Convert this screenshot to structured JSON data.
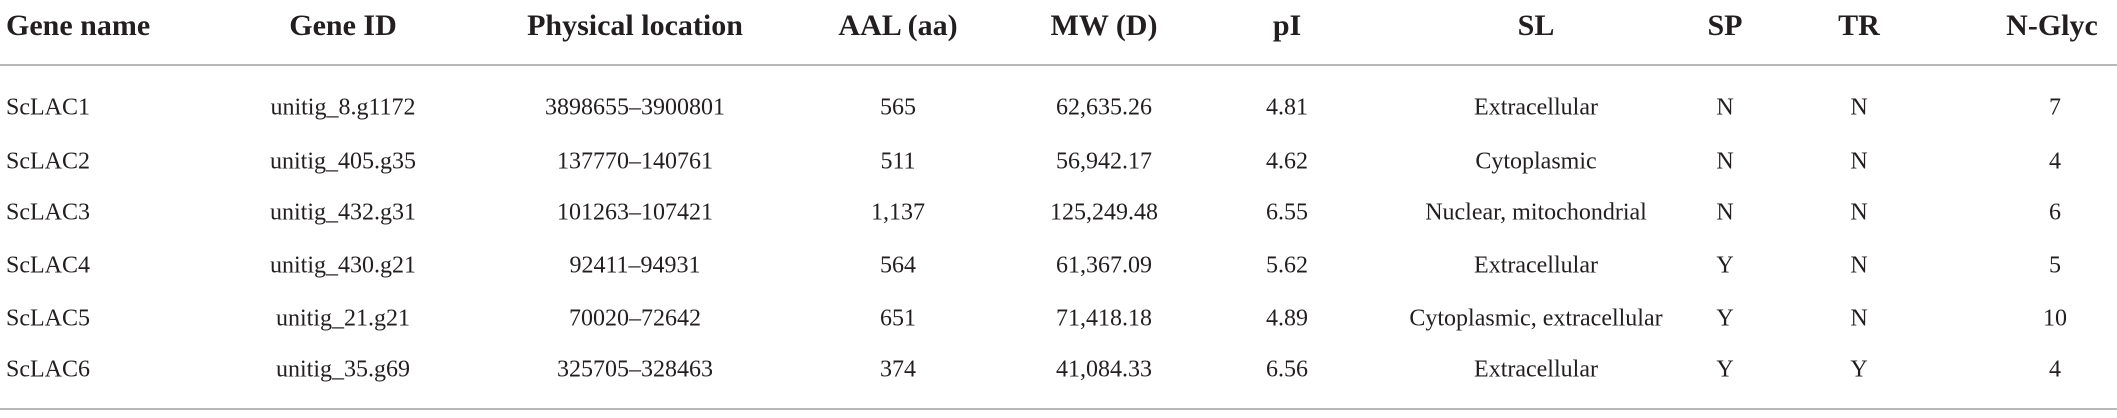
{
  "table": {
    "columns": [
      "Gene name",
      "Gene ID",
      "Physical location",
      "AAL (aa)",
      "MW (D)",
      "pI",
      "SL",
      "SP",
      "TR",
      "N-Glyc"
    ],
    "rows": [
      [
        "ScLAC1",
        "unitig_8.g1172",
        "3898655–3900801",
        "565",
        "62,635.26",
        "4.81",
        "Extracellular",
        "N",
        "N",
        "7"
      ],
      [
        "ScLAC2",
        "unitig_405.g35",
        "137770–140761",
        "511",
        "56,942.17",
        "4.62",
        "Cytoplasmic",
        "N",
        "N",
        "4"
      ],
      [
        "ScLAC3",
        "unitig_432.g31",
        "101263–107421",
        "1,137",
        "125,249.48",
        "6.55",
        "Nuclear, mitochondrial",
        "N",
        "N",
        "6"
      ],
      [
        "ScLAC4",
        "unitig_430.g21",
        "92411–94931",
        "564",
        "61,367.09",
        "5.62",
        "Extracellular",
        "Y",
        "N",
        "5"
      ],
      [
        "ScLAC5",
        "unitig_21.g21",
        "70020–72642",
        "651",
        "71,418.18",
        "4.89",
        "Cytoplasmic, extracellular",
        "Y",
        "N",
        "10"
      ],
      [
        "ScLAC6",
        "unitig_35.g69",
        "325705–328463",
        "374",
        "41,084.33",
        "6.56",
        "Extracellular",
        "Y",
        "Y",
        "4"
      ]
    ]
  }
}
